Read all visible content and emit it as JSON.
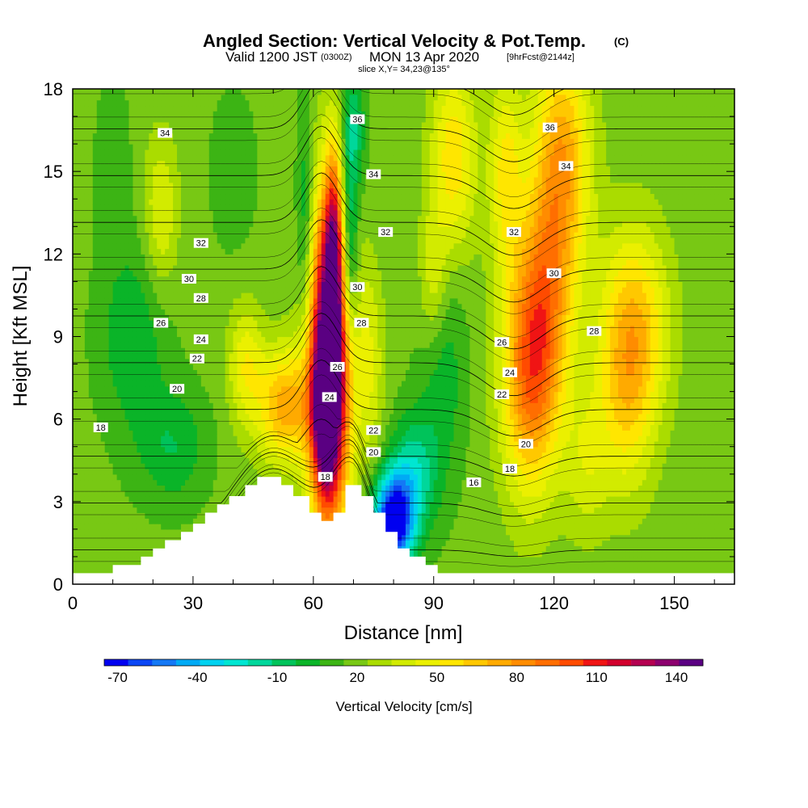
{
  "chart_data": {
    "type": "heatmap",
    "title": "Angled Section: Vertical Velocity & Pot.Temp.",
    "title_units": "(C)",
    "subtitle_valid": "Valid 1200 JST",
    "subtitle_utc": "(0300Z)",
    "subtitle_date": "MON 13 Apr 2020",
    "subtitle_fcst": "[9hrFcst@2144z]",
    "subtitle_slice": "slice X,Y= 34,23@135°",
    "xlabel": "Distance [nm]",
    "ylabel": "Height [Kft MSL]",
    "xlim": [
      0,
      165
    ],
    "ylim": [
      0,
      18
    ],
    "x_ticks": [
      0,
      30,
      60,
      90,
      120,
      150
    ],
    "y_ticks": [
      0,
      3,
      6,
      9,
      12,
      15,
      18
    ],
    "colorbar": {
      "label": "Vertical Velocity [cm/s]",
      "tick_labels": [
        "-70",
        "-40",
        "-10",
        "20",
        "50",
        "80",
        "110",
        "140"
      ],
      "tick_values": [
        -70,
        -40,
        -10,
        20,
        50,
        80,
        110,
        140
      ],
      "min": -75,
      "max": 150,
      "colors": [
        "#0000f0",
        "#0a46f5",
        "#1478f5",
        "#00aaf5",
        "#00d2f0",
        "#00e6d2",
        "#00d79b",
        "#00c35a",
        "#0ab428",
        "#3cb414",
        "#78c814",
        "#aadc00",
        "#d2eb00",
        "#ebf000",
        "#ffe600",
        "#ffc800",
        "#ffaa00",
        "#ff8c00",
        "#ff6e00",
        "#ff4b00",
        "#f01414",
        "#d2002d",
        "#b40050",
        "#8c006e",
        "#5a0082"
      ]
    },
    "terrain": [
      [
        0,
        0.4
      ],
      [
        10,
        0.4
      ],
      [
        10,
        0.7
      ],
      [
        17,
        0.7
      ],
      [
        17,
        1.0
      ],
      [
        20,
        1.0
      ],
      [
        20,
        1.3
      ],
      [
        23,
        1.3
      ],
      [
        23,
        1.6
      ],
      [
        27,
        1.6
      ],
      [
        27,
        1.9
      ],
      [
        30,
        1.9
      ],
      [
        30,
        2.2
      ],
      [
        33,
        2.2
      ],
      [
        33,
        2.6
      ],
      [
        36,
        2.6
      ],
      [
        36,
        2.9
      ],
      [
        39,
        2.9
      ],
      [
        39,
        3.2
      ],
      [
        43,
        3.2
      ],
      [
        43,
        3.6
      ],
      [
        46,
        3.6
      ],
      [
        46,
        3.9
      ],
      [
        52,
        3.9
      ],
      [
        52,
        3.6
      ],
      [
        55,
        3.6
      ],
      [
        55,
        3.2
      ],
      [
        59,
        3.2
      ],
      [
        59,
        2.6
      ],
      [
        62,
        2.6
      ],
      [
        62,
        2.3
      ],
      [
        65,
        2.3
      ],
      [
        65,
        2.6
      ],
      [
        68,
        2.6
      ],
      [
        68,
        3.6
      ],
      [
        72,
        3.6
      ],
      [
        72,
        3.2
      ],
      [
        75,
        3.2
      ],
      [
        75,
        2.6
      ],
      [
        78,
        2.6
      ],
      [
        78,
        1.9
      ],
      [
        81,
        1.9
      ],
      [
        81,
        1.3
      ],
      [
        84,
        1.3
      ],
      [
        84,
        1.0
      ],
      [
        88,
        1.0
      ],
      [
        88,
        0.7
      ],
      [
        91,
        0.7
      ],
      [
        91,
        0.4
      ],
      [
        165,
        0.4
      ]
    ],
    "velocity_blobs": [
      {
        "x": 64,
        "y": 8.0,
        "sx": 3.5,
        "sy": 4.0,
        "v": 160
      },
      {
        "x": 63,
        "y": 6.0,
        "sx": 2.0,
        "sy": 1.8,
        "v": 60
      },
      {
        "x": 53,
        "y": 6.5,
        "sx": 5.0,
        "sy": 1.5,
        "v": 55
      },
      {
        "x": 65,
        "y": 12.5,
        "sx": 1.5,
        "sy": 2.5,
        "v": 60
      },
      {
        "x": 74,
        "y": 8.0,
        "sx": 2.5,
        "sy": 2.5,
        "v": 25
      },
      {
        "x": 69,
        "y": 12.0,
        "sx": 1.5,
        "sy": 2.5,
        "v": -45
      },
      {
        "x": 70,
        "y": 16.5,
        "sx": 2.0,
        "sy": 1.5,
        "v": -30
      },
      {
        "x": 58,
        "y": 13.0,
        "sx": 1.5,
        "sy": 3.0,
        "v": -25
      },
      {
        "x": 80,
        "y": 2.3,
        "sx": 3.5,
        "sy": 1.2,
        "v": -100
      },
      {
        "x": 85,
        "y": 4.0,
        "sx": 4.0,
        "sy": 1.5,
        "v": -35
      },
      {
        "x": 92,
        "y": 8.0,
        "sx": 4.0,
        "sy": 3.0,
        "v": -20
      },
      {
        "x": 95,
        "y": 15.5,
        "sx": 4.0,
        "sy": 2.5,
        "v": 40
      },
      {
        "x": 90,
        "y": 11.0,
        "sx": 2.5,
        "sy": 2.0,
        "v": 25
      },
      {
        "x": 114,
        "y": 7.5,
        "sx": 5.0,
        "sy": 3.0,
        "v": 65
      },
      {
        "x": 118,
        "y": 10.5,
        "sx": 5.0,
        "sy": 3.0,
        "v": 45
      },
      {
        "x": 122,
        "y": 15.5,
        "sx": 5.0,
        "sy": 3.0,
        "v": 55
      },
      {
        "x": 108,
        "y": 15.0,
        "sx": 3.0,
        "sy": 2.5,
        "v": 35
      },
      {
        "x": 140,
        "y": 9.5,
        "sx": 6.0,
        "sy": 2.5,
        "v": 45
      },
      {
        "x": 138,
        "y": 6.5,
        "sx": 5.0,
        "sy": 2.5,
        "v": 30
      },
      {
        "x": 128,
        "y": 4.5,
        "sx": 4.0,
        "sy": 2.0,
        "v": 20
      },
      {
        "x": 15,
        "y": 9.0,
        "sx": 6.0,
        "sy": 2.5,
        "v": -20
      },
      {
        "x": 25,
        "y": 5.0,
        "sx": 6.0,
        "sy": 1.5,
        "v": -20
      },
      {
        "x": 43,
        "y": 8.0,
        "sx": 3.0,
        "sy": 1.5,
        "v": 30
      },
      {
        "x": 22,
        "y": 13.5,
        "sx": 3.0,
        "sy": 2.0,
        "v": 25
      },
      {
        "x": 40,
        "y": 15.0,
        "sx": 4.0,
        "sy": 2.0,
        "v": -10
      },
      {
        "x": 10,
        "y": 15.5,
        "sx": 3.0,
        "sy": 2.0,
        "v": -10
      }
    ],
    "velocity_background": 18,
    "theta_levels": [
      16,
      18,
      20,
      22,
      24,
      26,
      28,
      30,
      32,
      34,
      36,
      38
    ],
    "contour_labels": [
      {
        "text": "18",
        "x": 7,
        "y": 5.7
      },
      {
        "text": "20",
        "x": 26,
        "y": 7.1
      },
      {
        "text": "22",
        "x": 31,
        "y": 8.2
      },
      {
        "text": "24",
        "x": 32,
        "y": 8.9
      },
      {
        "text": "26",
        "x": 22,
        "y": 9.5
      },
      {
        "text": "28",
        "x": 32,
        "y": 10.4
      },
      {
        "text": "30",
        "x": 29,
        "y": 11.1
      },
      {
        "text": "32",
        "x": 32,
        "y": 12.4
      },
      {
        "text": "34",
        "x": 23,
        "y": 16.4
      },
      {
        "text": "16",
        "x": 100,
        "y": 3.7
      },
      {
        "text": "18",
        "x": 63,
        "y": 3.9
      },
      {
        "text": "20",
        "x": 75,
        "y": 4.8
      },
      {
        "text": "22",
        "x": 75,
        "y": 5.6
      },
      {
        "text": "24",
        "x": 64,
        "y": 6.8
      },
      {
        "text": "26",
        "x": 66,
        "y": 7.9
      },
      {
        "text": "28",
        "x": 72,
        "y": 9.5
      },
      {
        "text": "30",
        "x": 71,
        "y": 10.8
      },
      {
        "text": "32",
        "x": 78,
        "y": 12.8
      },
      {
        "text": "34",
        "x": 75,
        "y": 14.9
      },
      {
        "text": "36",
        "x": 71,
        "y": 16.9
      },
      {
        "text": "26",
        "x": 107,
        "y": 8.8
      },
      {
        "text": "24",
        "x": 109,
        "y": 7.7
      },
      {
        "text": "22",
        "x": 107,
        "y": 6.9
      },
      {
        "text": "20",
        "x": 113,
        "y": 5.1
      },
      {
        "text": "18",
        "x": 109,
        "y": 4.2
      },
      {
        "text": "28",
        "x": 130,
        "y": 9.2
      },
      {
        "text": "30",
        "x": 120,
        "y": 11.3
      },
      {
        "text": "32",
        "x": 110,
        "y": 12.8
      },
      {
        "text": "34",
        "x": 123,
        "y": 15.2
      },
      {
        "text": "36",
        "x": 119,
        "y": 16.6
      }
    ]
  }
}
